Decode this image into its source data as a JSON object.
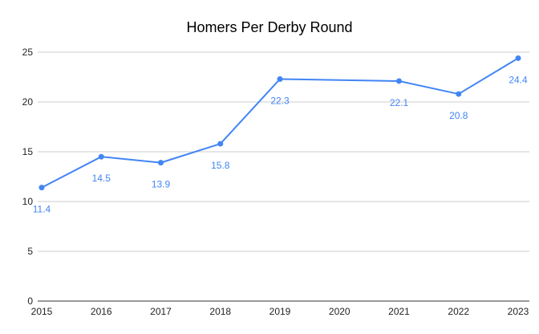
{
  "chart_data": {
    "type": "line",
    "title": "Homers Per Derby Round",
    "xlabel": "",
    "ylabel": "",
    "categories": [
      "2015",
      "2016",
      "2017",
      "2018",
      "2019",
      "2020",
      "2021",
      "2022",
      "2023"
    ],
    "series": [
      {
        "values": [
          11.4,
          14.5,
          13.9,
          15.8,
          22.3,
          null,
          22.1,
          20.8,
          24.4
        ],
        "color": "#4285F4"
      }
    ],
    "data_labels": [
      "11.4",
      "14.5",
      "13.9",
      "15.8",
      "22.3",
      "",
      "22.1",
      "20.8",
      "24.4"
    ],
    "yticks": [
      "0",
      "5",
      "10",
      "15",
      "20",
      "25"
    ],
    "ylim": [
      0,
      25
    ],
    "grid": true,
    "legend": "none"
  }
}
